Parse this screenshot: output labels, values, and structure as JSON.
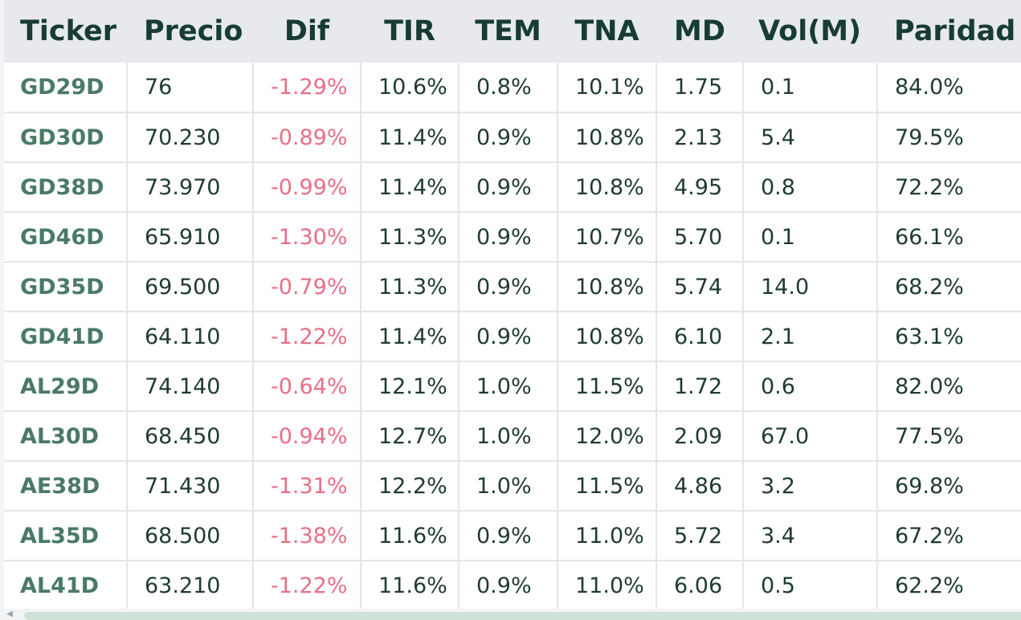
{
  "table": {
    "headers": [
      "Ticker",
      "Precio",
      "Dif",
      "TIR",
      "TEM",
      "TNA",
      "MD",
      "Vol(M)",
      "Paridad"
    ],
    "rows": [
      [
        "GD29D",
        "76",
        "-1.29%",
        "10.6%",
        "0.8%",
        "10.1%",
        "1.75",
        "0.1",
        "84.0%"
      ],
      [
        "GD30D",
        "70.230",
        "-0.89%",
        "11.4%",
        "0.9%",
        "10.8%",
        "2.13",
        "5.4",
        "79.5%"
      ],
      [
        "GD38D",
        "73.970",
        "-0.99%",
        "11.4%",
        "0.9%",
        "10.8%",
        "4.95",
        "0.8",
        "72.2%"
      ],
      [
        "GD46D",
        "65.910",
        "-1.30%",
        "11.3%",
        "0.9%",
        "10.7%",
        "5.70",
        "0.1",
        "66.1%"
      ],
      [
        "GD35D",
        "69.500",
        "-0.79%",
        "11.3%",
        "0.9%",
        "10.8%",
        "5.74",
        "14.0",
        "68.2%"
      ],
      [
        "GD41D",
        "64.110",
        "-1.22%",
        "11.4%",
        "0.9%",
        "10.8%",
        "6.10",
        "2.1",
        "63.1%"
      ],
      [
        "AL29D",
        "74.140",
        "-0.64%",
        "12.1%",
        "1.0%",
        "11.5%",
        "1.72",
        "0.6",
        "82.0%"
      ],
      [
        "AL30D",
        "68.450",
        "-0.94%",
        "12.7%",
        "1.0%",
        "12.0%",
        "2.09",
        "67.0",
        "77.5%"
      ],
      [
        "AE38D",
        "71.430",
        "-1.31%",
        "12.2%",
        "1.0%",
        "11.5%",
        "4.86",
        "3.2",
        "69.8%"
      ],
      [
        "AL35D",
        "68.500",
        "-1.38%",
        "11.6%",
        "0.9%",
        "11.0%",
        "5.72",
        "3.4",
        "67.2%"
      ],
      [
        "AL41D",
        "63.210",
        "-1.22%",
        "11.6%",
        "0.9%",
        "11.0%",
        "6.06",
        "0.5",
        "62.2%"
      ]
    ]
  },
  "colors": {
    "header_bg": "#e7e9ec",
    "header_text": "#173c34",
    "ticker_text": "#4a7a67",
    "negative": "#e76f86",
    "cell_text": "#1f3a34",
    "grid": "#e3e5e8"
  },
  "scrollbar": {
    "arrow_icon": "chevron-left-icon"
  }
}
